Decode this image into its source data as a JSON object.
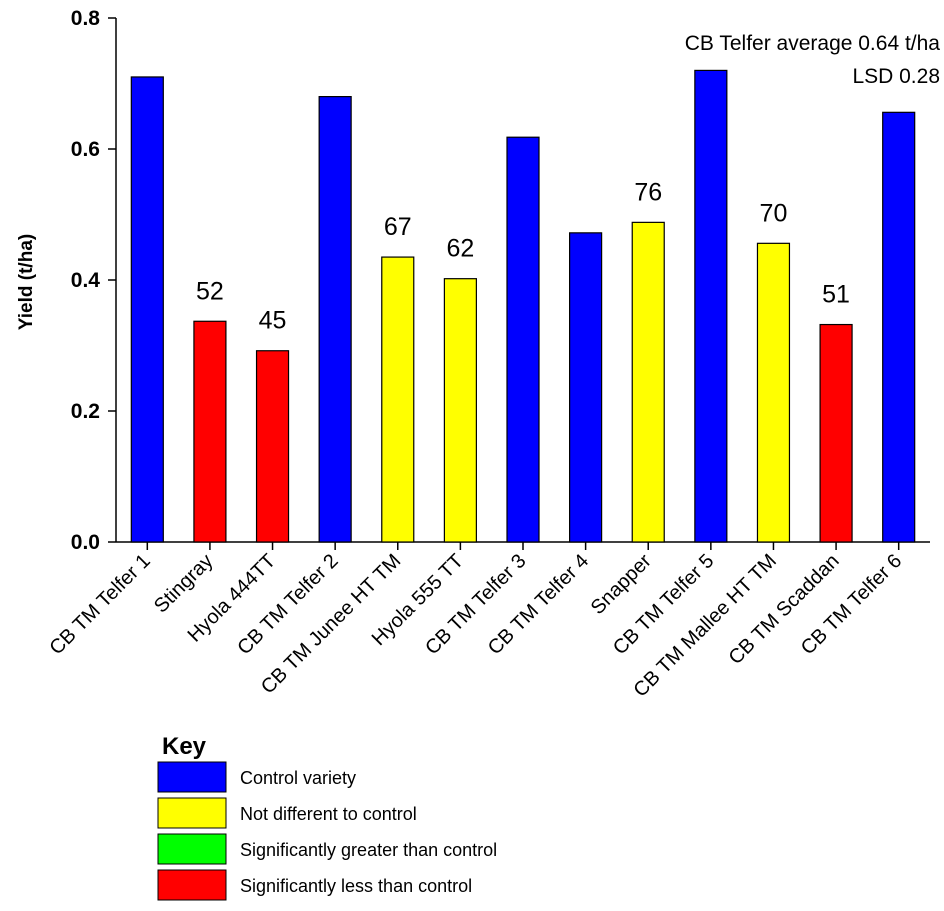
{
  "chart_data": {
    "type": "bar",
    "categories": [
      "CB TM Telfer 1",
      "Stingray",
      "Hyola 444TT",
      "CB TM Telfer 2",
      "CB TM Junee HT TM",
      "Hyola 555 TT",
      "CB TM Telfer 3",
      "CB TM Telfer 4",
      "Snapper",
      "CB TM Telfer 5",
      "CB TM Mallee HT TM",
      "CB TM Scaddan",
      "CB TM Telfer 6"
    ],
    "values": [
      0.71,
      0.337,
      0.292,
      0.68,
      0.435,
      0.402,
      0.618,
      0.472,
      0.488,
      0.72,
      0.456,
      0.332,
      0.656
    ],
    "groups": [
      "control",
      "less",
      "less",
      "control",
      "same",
      "same",
      "control",
      "control",
      "same",
      "control",
      "same",
      "less",
      "control"
    ],
    "data_labels": [
      "",
      "52",
      "45",
      "",
      "67",
      "62",
      "",
      "",
      "76",
      "",
      "70",
      "51",
      ""
    ],
    "ylabel": "Yield (t/ha)",
    "ylim": [
      0,
      0.8
    ],
    "yticks": [
      "0.0",
      "0.2",
      "0.4",
      "0.6",
      "0.8"
    ],
    "grid": false,
    "annotations": [
      "CB Telfer average 0.64 t/ha",
      "LSD 0.28"
    ],
    "legend": {
      "title": "Key",
      "placement": "bottom-left",
      "items": [
        {
          "key": "control",
          "label": "Control variety",
          "color": "#0000ff"
        },
        {
          "key": "same",
          "label": "Not different to control",
          "color": "#ffff00"
        },
        {
          "key": "greater",
          "label": "Significantly greater than control",
          "color": "#00ff00"
        },
        {
          "key": "less",
          "label": "Significantly less than control",
          "color": "#ff0000"
        }
      ]
    }
  }
}
